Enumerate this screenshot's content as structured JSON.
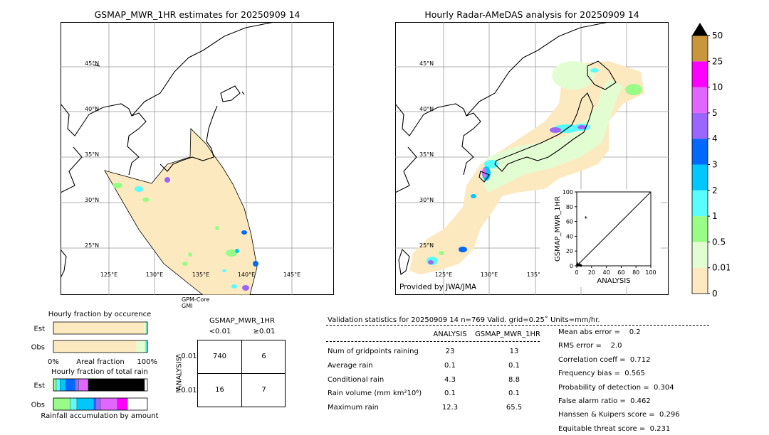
{
  "left_map": {
    "title": "GSMAP_MWR_1HR estimates for 20250909 14",
    "lat_labels": [
      "45°N",
      "40°N",
      "35°N",
      "30°N",
      "25°N"
    ],
    "lon_labels": [
      "125°E",
      "130°E",
      "135°E",
      "140°E",
      "145°E"
    ],
    "satellite_note": [
      "GPM-Core",
      "GMI"
    ]
  },
  "right_map": {
    "title": "Hourly Radar-AMeDAS analysis for 20250909 14",
    "lat_labels": [
      "45°N",
      "40°N",
      "35°N",
      "30°N",
      "25°N"
    ],
    "lon_labels": [
      "125°E",
      "130°E",
      "135°E"
    ],
    "credit": "Provided by JWA/JMA"
  },
  "colorbar": {
    "labels": [
      "0",
      "0.01",
      "0.5",
      "1",
      "2",
      "3",
      "4",
      "5",
      "10",
      "25",
      "50"
    ],
    "colors": [
      "#fde9c0",
      "#e3fdd2",
      "#98fc86",
      "#5afdfd",
      "#00c8fd",
      "#0068fd",
      "#9a66fd",
      "#e066fd",
      "#ff00ff",
      "#c8963c"
    ],
    "extend_color": "#000000"
  },
  "chart_data": [
    {
      "type": "scatter",
      "title": "",
      "xlabel": "ANALYSIS",
      "ylabel": "GSMAP_MWR_1HR",
      "xlim": [
        0,
        100
      ],
      "ylim": [
        0,
        100
      ],
      "xticks": [
        "0",
        "20",
        "40",
        "60",
        "80",
        "100"
      ],
      "yticks": [
        "0",
        "20",
        "40",
        "60",
        "80",
        "100"
      ],
      "points": [
        {
          "x": 12.3,
          "y": 65.5
        },
        {
          "x": 0.5,
          "y": 0.3
        },
        {
          "x": 1.0,
          "y": 1.5
        },
        {
          "x": 2.0,
          "y": 0.8
        },
        {
          "x": 3.5,
          "y": 2.5
        },
        {
          "x": 4.3,
          "y": 0.4
        },
        {
          "x": 5.0,
          "y": 1.0
        },
        {
          "x": 1.5,
          "y": 3.0
        },
        {
          "x": 0.2,
          "y": 0.1
        },
        {
          "x": 6.0,
          "y": 0.2
        }
      ],
      "diagonal": true
    },
    {
      "type": "bar",
      "title": "Hourly fraction by occurence",
      "categories": [
        "Est",
        "Obs"
      ],
      "xlabel": "Areal fraction",
      "x_tick_labels": [
        "0%",
        "100%"
      ],
      "series": [
        {
          "values": [
            0.962,
            0.883
          ],
          "color": "#fde9c0"
        },
        {
          "values": [
            0.02,
            0.09
          ],
          "color": "#e3fdd2"
        },
        {
          "values": [
            0.008,
            0.012
          ],
          "color": "#98fc86"
        },
        {
          "values": [
            0.005,
            0.008
          ],
          "color": "#5afdfd"
        },
        {
          "values": [
            0.003,
            0.004
          ],
          "color": "#00c8fd"
        },
        {
          "values": [
            0.002,
            0.003
          ],
          "color": "#000000"
        }
      ]
    },
    {
      "type": "bar",
      "title": "Hourly fraction of total rain",
      "categories": [
        "Est",
        "Obs"
      ],
      "xlabel": "Rainfall accumulation by amount",
      "series": [
        {
          "values": [
            0.03,
            0.18
          ],
          "color": "#98fc86"
        },
        {
          "values": [
            0.04,
            0.07
          ],
          "color": "#5afdfd"
        },
        {
          "values": [
            0.06,
            0.18
          ],
          "color": "#00c8fd"
        },
        {
          "values": [
            0.1,
            0.02
          ],
          "color": "#0068fd"
        },
        {
          "values": [
            0.04,
            0.05
          ],
          "color": "#9a66fd"
        },
        {
          "values": [
            0.1,
            0.18
          ],
          "color": "#e066fd"
        },
        {
          "values": [
            0.0,
            0.11
          ],
          "color": "#ff00ff"
        },
        {
          "values": [
            0.6,
            0.0
          ],
          "color": "#000000"
        }
      ]
    },
    {
      "type": "table",
      "title": "GSMAP_MWR_1HR",
      "col_labels": [
        "<0.01",
        "≥0.01"
      ],
      "row_title": "ANALYSIS",
      "row_labels": [
        "<0.01",
        "≥0.01"
      ],
      "cells": [
        [
          "740",
          "6"
        ],
        [
          "16",
          "7"
        ]
      ]
    }
  ],
  "validation": {
    "header": "Validation statistics for 20250909 14  n=769 Valid. grid=0.25˚ Units=mm/hr.",
    "col_analysis": "ANALYSIS",
    "col_gsmap": "GSMAP_MWR_1HR",
    "rows": [
      {
        "label": "Num of gridpoints raining",
        "analysis": "23",
        "gsmap": "13"
      },
      {
        "label": "Average rain",
        "analysis": "0.1",
        "gsmap": "0.1"
      },
      {
        "label": "Conditional rain",
        "analysis": "4.3",
        "gsmap": "8.8"
      },
      {
        "label": "Rain volume (mm km²10⁶)",
        "analysis": "0.1",
        "gsmap": "0.1"
      },
      {
        "label": "Maximum rain",
        "analysis": "12.3",
        "gsmap": "65.5"
      }
    ],
    "scores": [
      "Mean abs error =    0.2",
      "RMS error =    2.0",
      "Correlation coeff =  0.712",
      "Frequency bias =  0.565",
      "Probability of detection =  0.304",
      "False alarm ratio =  0.462",
      "Hanssen & Kuipers score =  0.296",
      "Equitable threat score =  0.231"
    ]
  }
}
